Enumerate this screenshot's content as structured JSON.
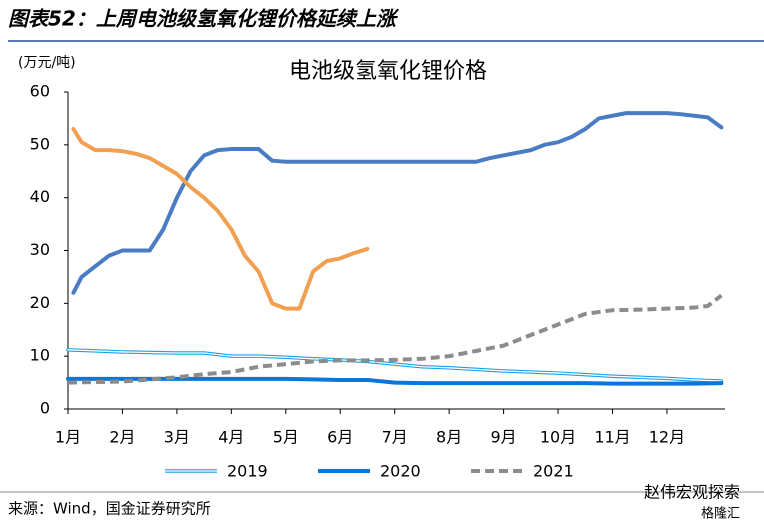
{
  "header": {
    "title": "图表52：上周电池级氢氧化锂价格延续上涨"
  },
  "chart_data": {
    "type": "line",
    "title": "电池级氢氧化锂价格",
    "y_label": "(万元/吨)",
    "xlim": [
      1,
      13
    ],
    "ylim": [
      0,
      60
    ],
    "xticks": [
      {
        "value": 1,
        "label": "1月"
      },
      {
        "value": 2,
        "label": "2月"
      },
      {
        "value": 3,
        "label": "3月"
      },
      {
        "value": 4,
        "label": "4月"
      },
      {
        "value": 5,
        "label": "5月"
      },
      {
        "value": 6,
        "label": "6月"
      },
      {
        "value": 7,
        "label": "7月"
      },
      {
        "value": 8,
        "label": "8月"
      },
      {
        "value": 9,
        "label": "9月"
      },
      {
        "value": 10,
        "label": "10月"
      },
      {
        "value": 11,
        "label": "11月"
      },
      {
        "value": 12,
        "label": "12月"
      }
    ],
    "yticks": [
      0,
      10,
      20,
      30,
      40,
      50,
      60
    ],
    "series": [
      {
        "name": "2019",
        "color": "#1ba1e2",
        "style": "double",
        "x": [
          1,
          1.5,
          2,
          2.5,
          3,
          3.5,
          4,
          4.5,
          5,
          5.5,
          6,
          6.5,
          7,
          7.5,
          8,
          8.5,
          9,
          9.5,
          10,
          10.5,
          11,
          11.5,
          12,
          12.5,
          13
        ],
        "values": [
          11.2,
          11,
          10.8,
          10.7,
          10.6,
          10.6,
          10,
          10,
          9.8,
          9.5,
          9.3,
          9,
          8.5,
          8,
          7.8,
          7.5,
          7.2,
          7,
          6.8,
          6.5,
          6.2,
          6,
          5.8,
          5.5,
          5.3
        ]
      },
      {
        "name": "2020",
        "color": "#0a76d8",
        "style": "thick",
        "x": [
          1,
          1.5,
          2,
          2.5,
          3,
          3.5,
          4,
          4.5,
          5,
          5.5,
          6,
          6.5,
          7,
          7.5,
          8,
          8.5,
          9,
          9.5,
          10,
          10.5,
          11,
          11.5,
          12,
          12.5,
          13
        ],
        "values": [
          5.7,
          5.7,
          5.7,
          5.7,
          5.7,
          5.7,
          5.7,
          5.7,
          5.7,
          5.6,
          5.5,
          5.5,
          5,
          4.9,
          4.9,
          4.9,
          4.9,
          4.9,
          4.9,
          4.9,
          4.8,
          4.8,
          4.8,
          4.8,
          4.9
        ]
      },
      {
        "name": "2021",
        "color": "#8c8c8c",
        "style": "dashed",
        "x": [
          1,
          1.5,
          2,
          2.5,
          3,
          3.5,
          4,
          4.5,
          5,
          5.5,
          6,
          6.5,
          7,
          7.5,
          8,
          8.5,
          9,
          9.5,
          10,
          10.5,
          11,
          11.5,
          12,
          12.5,
          12.75,
          13
        ],
        "values": [
          5,
          5.1,
          5.2,
          5.6,
          6,
          6.6,
          7,
          8,
          8.5,
          9,
          9.2,
          9.2,
          9.3,
          9.5,
          10,
          11,
          12,
          14,
          16,
          18,
          18.7,
          18.8,
          19,
          19.2,
          19.5,
          21.5
        ]
      },
      {
        "color": "#4a7cc4",
        "style": "thick",
        "x": [
          1.1,
          1.25,
          1.5,
          1.75,
          2,
          2.25,
          2.5,
          2.75,
          3,
          3.25,
          3.5,
          3.75,
          4,
          4.25,
          4.5,
          4.75,
          5,
          5.5,
          6,
          6.5,
          7,
          7.5,
          8,
          8.5,
          8.75,
          9,
          9.25,
          9.5,
          9.75,
          10,
          10.25,
          10.5,
          10.75,
          11,
          11.25,
          11.5,
          11.75,
          12,
          12.25,
          12.5,
          12.75,
          13
        ],
        "values": [
          22,
          25,
          27,
          29,
          30,
          30,
          30,
          34,
          40,
          45,
          48,
          49,
          49.2,
          49.2,
          49.2,
          47,
          46.8,
          46.8,
          46.8,
          46.8,
          46.8,
          46.8,
          46.8,
          46.8,
          47.5,
          48,
          48.5,
          49,
          50,
          50.5,
          51.5,
          53,
          55,
          55.5,
          56,
          56,
          56,
          56,
          55.8,
          55.5,
          55.2,
          53.3
        ]
      },
      {
        "color": "#f0a050",
        "style": "thick",
        "x": [
          1.1,
          1.25,
          1.5,
          1.75,
          2,
          2.25,
          2.5,
          2.75,
          3,
          3.25,
          3.5,
          3.75,
          4,
          4.25,
          4.5,
          4.75,
          5,
          5.25,
          5.5,
          5.75,
          6,
          6.25,
          6.5
        ],
        "values": [
          53,
          50.5,
          49,
          49,
          48.8,
          48.3,
          47.5,
          46,
          44.5,
          42,
          40,
          37.5,
          34,
          29,
          26,
          20,
          19,
          19,
          26,
          28,
          28.5,
          29.5,
          30.3
        ]
      }
    ]
  },
  "footer": {
    "source": "来源：Wind，国金证券研究所",
    "watermark": "赵伟宏观探索",
    "watermark_site": "格隆汇"
  }
}
